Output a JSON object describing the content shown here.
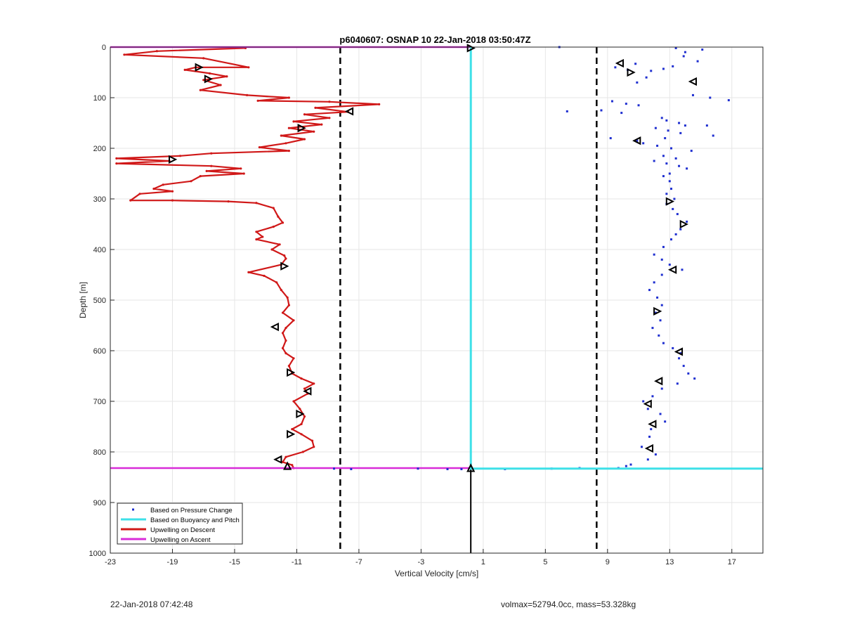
{
  "footer": {
    "timestamp": "22-Jan-2018 07:42:48",
    "info": "volmax=52794.0cc, mass=53.328kg"
  },
  "chart_data": {
    "type": "scatter",
    "title": "p6040607: OSNAP 10 22-Jan-2018 03:50:47Z",
    "xlabel": "Vertical Velocity [cm/s]",
    "ylabel": "Depth [m]",
    "xlim": [
      -23,
      19
    ],
    "ylim": [
      0,
      1000
    ],
    "y_reversed": true,
    "xticks": [
      -23,
      -19,
      -15,
      -11,
      -7,
      -3,
      1,
      5,
      9,
      13,
      17
    ],
    "yticks": [
      0,
      100,
      200,
      300,
      400,
      500,
      600,
      700,
      800,
      900,
      1000
    ],
    "grid": true,
    "legend_position": "bottom-left",
    "legend": [
      {
        "label": "Based on Pressure Change",
        "color": "#1f2fd0",
        "style": "dot"
      },
      {
        "label": "Based on Buoyancy and Pitch",
        "color": "#3ee0e8",
        "style": "line"
      },
      {
        "label": "Upwelling on Descent",
        "color": "#d01818",
        "style": "line"
      },
      {
        "label": "Upwelling on Ascent",
        "color": "#d82cd8",
        "style": "line"
      }
    ],
    "reference_lines": {
      "dashed_x": [
        -8.2,
        8.3
      ],
      "cyan_x": 0.2,
      "black_segment": {
        "x": 0.2,
        "y": [
          833,
          1000
        ]
      },
      "cyan_horizontal_depth": 833,
      "ascent_depths": [
        0,
        832
      ]
    },
    "series": [
      {
        "name": "Upwelling on Descent",
        "color": "#d01818",
        "points": [
          [
            -14.3,
            2
          ],
          [
            -20,
            8
          ],
          [
            -22.1,
            15
          ],
          [
            -17,
            22
          ],
          [
            -14.1,
            40
          ],
          [
            -17.5,
            40
          ],
          [
            -18.2,
            45
          ],
          [
            -16.6,
            52
          ],
          [
            -15.5,
            58
          ],
          [
            -17,
            65
          ],
          [
            -15.9,
            75
          ],
          [
            -17.2,
            85
          ],
          [
            -14.2,
            95
          ],
          [
            -11.5,
            100
          ],
          [
            -13.5,
            106
          ],
          [
            -8.9,
            108
          ],
          [
            -5.7,
            113
          ],
          [
            -9.8,
            120
          ],
          [
            -7.7,
            128
          ],
          [
            -10.5,
            133
          ],
          [
            -8.9,
            140
          ],
          [
            -11.2,
            147
          ],
          [
            -9.4,
            153
          ],
          [
            -11.5,
            160
          ],
          [
            -9.9,
            167
          ],
          [
            -12,
            175
          ],
          [
            -10.5,
            182
          ],
          [
            -11.7,
            190
          ],
          [
            -13.4,
            198
          ],
          [
            -11.5,
            205
          ],
          [
            -16.5,
            210
          ],
          [
            -18.5,
            215
          ],
          [
            -22.6,
            220
          ],
          [
            -19.2,
            225
          ],
          [
            -22.6,
            230
          ],
          [
            -16.5,
            235
          ],
          [
            -14.6,
            240
          ],
          [
            -16.8,
            245
          ],
          [
            -14.4,
            250
          ],
          [
            -17.2,
            255
          ],
          [
            -17.8,
            265
          ],
          [
            -19.6,
            272
          ],
          [
            -20.2,
            280
          ],
          [
            -19,
            285
          ],
          [
            -21.1,
            290
          ],
          [
            -21.7,
            303
          ],
          [
            -19,
            303
          ],
          [
            -15.4,
            305
          ],
          [
            -13.6,
            308
          ],
          [
            -12.5,
            318
          ],
          [
            -12.2,
            335
          ],
          [
            -11.9,
            347
          ],
          [
            -12.5,
            355
          ],
          [
            -13.6,
            365
          ],
          [
            -13.2,
            375
          ],
          [
            -13.6,
            380
          ],
          [
            -12.1,
            390
          ],
          [
            -12.6,
            400
          ],
          [
            -11.8,
            412
          ],
          [
            -11.7,
            418
          ],
          [
            -12,
            430
          ],
          [
            -14.1,
            445
          ],
          [
            -13.1,
            452
          ],
          [
            -12.3,
            465
          ],
          [
            -12,
            480
          ],
          [
            -11.6,
            495
          ],
          [
            -11.5,
            510
          ],
          [
            -11.9,
            525
          ],
          [
            -11.2,
            540
          ],
          [
            -11.7,
            555
          ],
          [
            -11.9,
            565
          ],
          [
            -11.7,
            580
          ],
          [
            -11.9,
            595
          ],
          [
            -11.7,
            605
          ],
          [
            -11.2,
            615
          ],
          [
            -11.5,
            630
          ],
          [
            -11.3,
            645
          ],
          [
            -10.7,
            655
          ],
          [
            -9.9,
            665
          ],
          [
            -10.5,
            675
          ],
          [
            -10.3,
            685
          ],
          [
            -11.2,
            700
          ],
          [
            -10.8,
            715
          ],
          [
            -10.5,
            730
          ],
          [
            -10.7,
            745
          ],
          [
            -11.3,
            755
          ],
          [
            -10.7,
            765
          ],
          [
            -10,
            778
          ],
          [
            -9.9,
            790
          ],
          [
            -10.6,
            800
          ],
          [
            -11.7,
            810
          ],
          [
            -11.9,
            820
          ],
          [
            -11.3,
            826
          ],
          [
            -11.2,
            832
          ]
        ]
      },
      {
        "name": "Upwelling on Ascent",
        "color": "#d82cd8",
        "points": [
          [
            -23,
            0
          ],
          [
            0.2,
            0
          ],
          [
            -23,
            832
          ],
          [
            0.2,
            832
          ]
        ]
      },
      {
        "name": "Based on Pressure Change",
        "color": "#1f2fd0",
        "points": [
          [
            5.9,
            0
          ],
          [
            15.1,
            5
          ],
          [
            13.4,
            2
          ],
          [
            14,
            10
          ],
          [
            13.9,
            18
          ],
          [
            14.8,
            28
          ],
          [
            13.2,
            38
          ],
          [
            12.6,
            43
          ],
          [
            11.8,
            47
          ],
          [
            10.3,
            45
          ],
          [
            9.5,
            40
          ],
          [
            10.8,
            33
          ],
          [
            11.5,
            60
          ],
          [
            10.9,
            70
          ],
          [
            14.5,
            95
          ],
          [
            16.8,
            105
          ],
          [
            15.6,
            100
          ],
          [
            9.3,
            107
          ],
          [
            10.2,
            112
          ],
          [
            11,
            115
          ],
          [
            8.6,
            125
          ],
          [
            6.4,
            127
          ],
          [
            9.9,
            130
          ],
          [
            12.5,
            140
          ],
          [
            12.8,
            145
          ],
          [
            13.6,
            150
          ],
          [
            14,
            155
          ],
          [
            15.4,
            155
          ],
          [
            12.1,
            160
          ],
          [
            12.9,
            165
          ],
          [
            13.7,
            170
          ],
          [
            15.8,
            175
          ],
          [
            12.7,
            180
          ],
          [
            9.2,
            180
          ],
          [
            10.9,
            185
          ],
          [
            11.3,
            190
          ],
          [
            12.2,
            195
          ],
          [
            13.1,
            200
          ],
          [
            14.4,
            205
          ],
          [
            12.6,
            215
          ],
          [
            13.4,
            220
          ],
          [
            12,
            225
          ],
          [
            12.8,
            230
          ],
          [
            13.6,
            235
          ],
          [
            14.1,
            240
          ],
          [
            13,
            250
          ],
          [
            12.6,
            255
          ],
          [
            13,
            265
          ],
          [
            13.1,
            280
          ],
          [
            12.8,
            290
          ],
          [
            13.3,
            300
          ],
          [
            12.8,
            310
          ],
          [
            13.2,
            320
          ],
          [
            13.5,
            330
          ],
          [
            14.1,
            345
          ],
          [
            13.7,
            360
          ],
          [
            13.4,
            370
          ],
          [
            13.1,
            380
          ],
          [
            12.6,
            395
          ],
          [
            12,
            410
          ],
          [
            12.5,
            420
          ],
          [
            13,
            430
          ],
          [
            13.8,
            440
          ],
          [
            12.5,
            450
          ],
          [
            12,
            465
          ],
          [
            11.7,
            480
          ],
          [
            12.2,
            495
          ],
          [
            12.5,
            510
          ],
          [
            12.1,
            525
          ],
          [
            12.4,
            540
          ],
          [
            11.9,
            555
          ],
          [
            12.3,
            570
          ],
          [
            12.6,
            585
          ],
          [
            13.2,
            595
          ],
          [
            13.7,
            605
          ],
          [
            13.6,
            615
          ],
          [
            13.9,
            630
          ],
          [
            14.2,
            645
          ],
          [
            14.6,
            655
          ],
          [
            13.5,
            665
          ],
          [
            12.5,
            675
          ],
          [
            11.9,
            690
          ],
          [
            11.3,
            700
          ],
          [
            11.6,
            715
          ],
          [
            12.4,
            725
          ],
          [
            12.7,
            740
          ],
          [
            11.8,
            755
          ],
          [
            11.7,
            770
          ],
          [
            11.2,
            790
          ],
          [
            12.1,
            805
          ],
          [
            11.6,
            815
          ],
          [
            10.5,
            825
          ],
          [
            10.2,
            828
          ],
          [
            9.7,
            832
          ],
          [
            7.2,
            832
          ],
          [
            5.4,
            833
          ],
          [
            2.4,
            834
          ],
          [
            -0.4,
            834
          ],
          [
            -1.3,
            834
          ],
          [
            -3.2,
            833
          ],
          [
            -7.5,
            834
          ],
          [
            -8.6,
            833
          ]
        ]
      },
      {
        "name": "Based on Buoyancy and Pitch",
        "color": "#3ee0e8",
        "points": [
          [
            0.2,
            0
          ],
          [
            0.2,
            833
          ],
          [
            19,
            833
          ]
        ]
      }
    ],
    "direction_markers": [
      {
        "x": -17.3,
        "y": 40,
        "dir": "right"
      },
      {
        "x": -16.7,
        "y": 63,
        "dir": "right"
      },
      {
        "x": -7.6,
        "y": 127,
        "dir": "left"
      },
      {
        "x": -10.7,
        "y": 160,
        "dir": "right"
      },
      {
        "x": -19,
        "y": 222,
        "dir": "right"
      },
      {
        "x": -11.8,
        "y": 433,
        "dir": "right"
      },
      {
        "x": -12.4,
        "y": 553,
        "dir": "left"
      },
      {
        "x": -11.4,
        "y": 643,
        "dir": "right"
      },
      {
        "x": -10.3,
        "y": 680,
        "dir": "left"
      },
      {
        "x": -10.8,
        "y": 725,
        "dir": "right"
      },
      {
        "x": -11.4,
        "y": 765,
        "dir": "right"
      },
      {
        "x": -12.2,
        "y": 815,
        "dir": "left"
      },
      {
        "x": -11.6,
        "y": 828,
        "dir": "up"
      },
      {
        "x": 0.2,
        "y": 2,
        "dir": "right"
      },
      {
        "x": 0.2,
        "y": 832,
        "dir": "up"
      },
      {
        "x": 9.8,
        "y": 32,
        "dir": "left"
      },
      {
        "x": 10.5,
        "y": 50,
        "dir": "right"
      },
      {
        "x": 14.5,
        "y": 68,
        "dir": "left"
      },
      {
        "x": 10.9,
        "y": 185,
        "dir": "left"
      },
      {
        "x": 13,
        "y": 305,
        "dir": "right"
      },
      {
        "x": 13.9,
        "y": 350,
        "dir": "right"
      },
      {
        "x": 13.2,
        "y": 440,
        "dir": "left"
      },
      {
        "x": 12.2,
        "y": 522,
        "dir": "right"
      },
      {
        "x": 13.6,
        "y": 602,
        "dir": "left"
      },
      {
        "x": 12.3,
        "y": 660,
        "dir": "left"
      },
      {
        "x": 11.6,
        "y": 705,
        "dir": "left"
      },
      {
        "x": 11.9,
        "y": 745,
        "dir": "left"
      },
      {
        "x": 11.7,
        "y": 793,
        "dir": "left"
      }
    ]
  }
}
